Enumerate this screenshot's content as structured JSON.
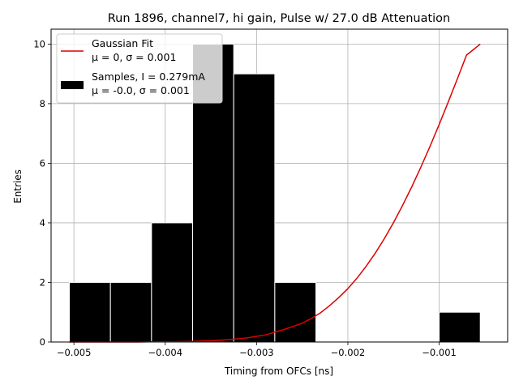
{
  "chart_data": {
    "type": "bar",
    "title": "Run 1896, channel7, hi gain, Pulse w/ 27.0 dB Attenuation",
    "xlabel": "Timing from OFCs [ns]",
    "ylabel": "Entries",
    "xlim": [
      -0.00525,
      -0.00025
    ],
    "ylim": [
      0,
      10.5
    ],
    "xticks": [
      -0.005,
      -0.004,
      -0.003,
      -0.002,
      -0.001
    ],
    "xtick_labels": [
      "−0.005",
      "−0.004",
      "−0.003",
      "−0.002",
      "−0.001"
    ],
    "yticks": [
      0,
      2,
      4,
      6,
      8,
      10
    ],
    "ytick_labels": [
      "0",
      "2",
      "4",
      "6",
      "8",
      "10"
    ],
    "grid": true,
    "legend_position": "top-left",
    "histogram": {
      "name": "Samples, I = 0.279mA",
      "name_line2": "μ = -0.0, σ = 0.001",
      "color": "#000000",
      "bins": [
        {
          "x0": -0.00505,
          "x1": -0.0046,
          "count": 2
        },
        {
          "x0": -0.0046,
          "x1": -0.00415,
          "count": 2
        },
        {
          "x0": -0.00415,
          "x1": -0.0037,
          "count": 4
        },
        {
          "x0": -0.0037,
          "x1": -0.00325,
          "count": 10
        },
        {
          "x0": -0.00325,
          "x1": -0.0028,
          "count": 9
        },
        {
          "x0": -0.0028,
          "x1": -0.00235,
          "count": 2
        },
        {
          "x0": -0.00235,
          "x1": -0.0019,
          "count": 0
        },
        {
          "x0": -0.0019,
          "x1": -0.00145,
          "count": 0
        },
        {
          "x0": -0.00145,
          "x1": -0.001,
          "count": 0
        },
        {
          "x0": -0.001,
          "x1": -0.00055,
          "count": 1
        }
      ]
    },
    "fit": {
      "name": "Gaussian Fit",
      "name_line2": "μ = 0, σ = 0.001",
      "color": "#dd0000",
      "x": [
        -0.00505,
        -0.0049,
        -0.0047,
        -0.0045,
        -0.0043,
        -0.0041,
        -0.0039,
        -0.0037,
        -0.0035,
        -0.0033,
        -0.0031,
        -0.0029,
        -0.0027,
        -0.0025,
        -0.0024,
        -0.0023,
        -0.0022,
        -0.0021,
        -0.002,
        -0.0019,
        -0.0018,
        -0.0017,
        -0.0016,
        -0.0015,
        -0.0014,
        -0.0013,
        -0.0012,
        -0.0011,
        -0.001,
        -0.0009,
        -0.0008,
        -0.0007,
        -0.00055
      ],
      "y": [
        0.0,
        0.0,
        0.0,
        0.0,
        0.0,
        0.01,
        0.01,
        0.02,
        0.04,
        0.08,
        0.14,
        0.24,
        0.42,
        0.63,
        0.79,
        0.98,
        1.22,
        1.49,
        1.79,
        2.14,
        2.54,
        2.98,
        3.47,
        4.01,
        4.59,
        5.21,
        5.87,
        6.57,
        7.3,
        8.06,
        8.84,
        9.63,
        10.0
      ]
    }
  }
}
